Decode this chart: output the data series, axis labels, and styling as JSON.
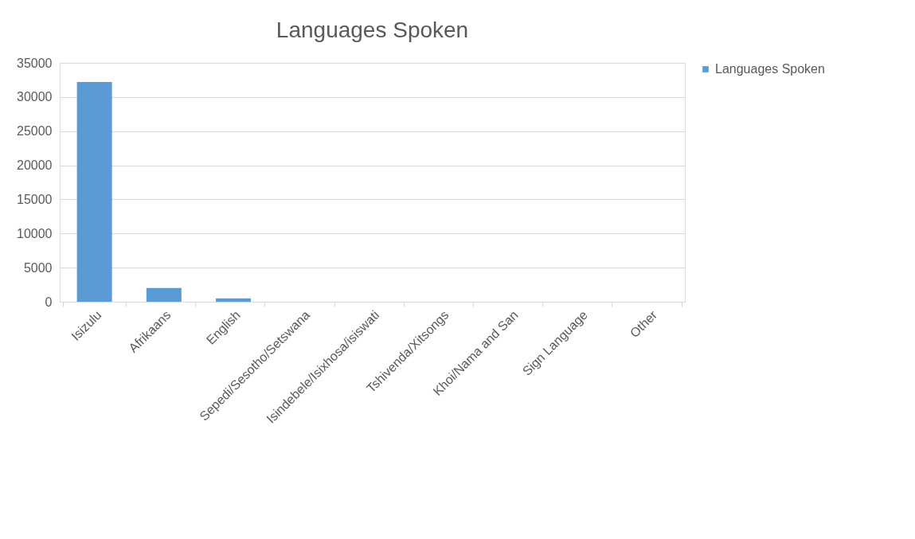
{
  "chart_data": {
    "type": "bar",
    "title": "Languages Spoken",
    "categories": [
      "Isizulu",
      "Afrikaans",
      "English",
      "Sepedi/Sesotho/Setswana",
      "Isindebele/Isixhosa/isiswati",
      "Tshivenda/Xitsongs",
      "Khoi/Nama and San",
      "Sign Language",
      "Other"
    ],
    "series": [
      {
        "name": "Languages Spoken",
        "color": "#5b9bd5",
        "values": [
          32200,
          2000,
          500,
          0,
          0,
          0,
          0,
          0,
          0
        ]
      }
    ],
    "ylim": [
      0,
      35000
    ],
    "yticks": [
      0,
      5000,
      10000,
      15000,
      20000,
      25000,
      30000,
      35000
    ],
    "grid": "y",
    "legend": "right"
  }
}
